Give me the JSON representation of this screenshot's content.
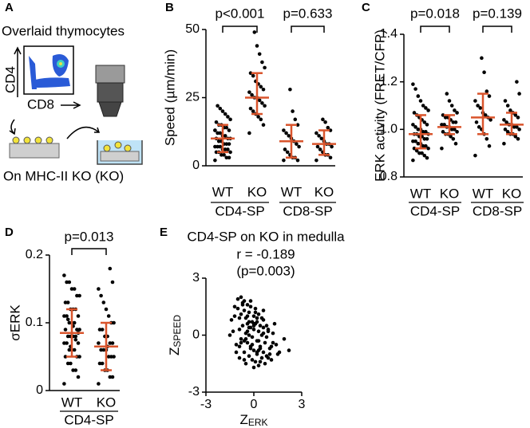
{
  "diagram": {
    "panel": "A",
    "caption_top": "Overlaid thymocytes",
    "axis_y": "CD4",
    "axis_x": "CD8",
    "caption_bottom": "On MHC-II KO (KO)"
  },
  "chart_data": [
    {
      "type": "strip",
      "panel": "B",
      "ylabel": "Speed (µm/min)",
      "categories": [
        "WT",
        "KO",
        "WT",
        "KO"
      ],
      "groups": [
        "CD4-SP",
        "CD8-SP"
      ],
      "annotations": [
        "p<0.001",
        "p=0.633"
      ],
      "ylim": [
        0,
        50
      ],
      "yticks": [
        0,
        25,
        50
      ],
      "color": "#000000",
      "summary_color": "#d9542c",
      "values": [
        [
          2,
          3,
          3,
          4,
          4,
          5,
          5,
          5,
          6,
          6,
          6,
          7,
          7,
          7,
          8,
          8,
          8,
          9,
          9,
          10,
          10,
          10,
          11,
          11,
          12,
          12,
          13,
          13,
          14,
          14,
          15,
          15,
          16,
          17,
          18,
          19,
          20,
          21,
          22,
          13
        ],
        [
          12,
          15,
          17,
          18,
          19,
          20,
          21,
          22,
          23,
          24,
          25,
          25,
          26,
          27,
          28,
          29,
          30,
          31,
          33,
          34,
          36,
          38,
          41,
          44,
          49
        ],
        [
          2,
          2,
          3,
          3,
          4,
          5,
          6,
          7,
          8,
          9,
          10,
          11,
          12,
          13,
          15,
          17,
          20,
          28
        ],
        [
          2,
          3,
          4,
          4,
          5,
          6,
          7,
          7,
          8,
          8,
          9,
          10,
          11,
          12,
          13,
          14,
          16,
          17
        ]
      ],
      "median": [
        10,
        25,
        9,
        8
      ],
      "q1": [
        5,
        19,
        3,
        4
      ],
      "q3": [
        15,
        34,
        15,
        13
      ]
    },
    {
      "type": "strip",
      "panel": "C",
      "ylabel": "ERK activity (FRET/CFP)",
      "categories": [
        "WT",
        "KO",
        "WT",
        "KO"
      ],
      "groups": [
        "CD4-SP",
        "CD8-SP"
      ],
      "annotations": [
        "p=0.018",
        "p=0.139"
      ],
      "ylim": [
        0.8,
        1.4
      ],
      "yticks": [
        0.8,
        {
          "value": 1,
          "label": "1.0"
        },
        1.2,
        1.4
      ],
      "color": "#000000",
      "summary_color": "#d9542c",
      "values": [
        [
          0.87,
          0.88,
          0.89,
          0.9,
          0.9,
          0.91,
          0.92,
          0.92,
          0.93,
          0.93,
          0.94,
          0.94,
          0.95,
          0.95,
          0.96,
          0.96,
          0.97,
          0.97,
          0.98,
          0.98,
          0.98,
          0.99,
          0.99,
          1.0,
          1.0,
          1.01,
          1.02,
          1.02,
          1.03,
          1.04,
          1.05,
          1.06,
          1.07,
          1.08,
          1.09,
          1.1,
          1.12,
          1.14,
          1.17,
          1.19
        ],
        [
          0.92,
          0.94,
          0.96,
          0.97,
          0.98,
          0.98,
          0.99,
          0.99,
          1.0,
          1.0,
          1.01,
          1.01,
          1.02,
          1.02,
          1.03,
          1.03,
          1.04,
          1.05,
          1.05,
          1.06,
          1.07,
          1.08,
          1.1,
          1.12,
          1.15
        ],
        [
          0.89,
          0.93,
          0.96,
          0.98,
          1.0,
          1.01,
          1.03,
          1.04,
          1.05,
          1.06,
          1.07,
          1.09,
          1.1,
          1.12,
          1.14,
          1.16,
          1.24,
          1.3
        ],
        [
          0.94,
          0.96,
          0.97,
          0.98,
          0.98,
          0.99,
          1.0,
          1.0,
          1.01,
          1.01,
          1.02,
          1.02,
          1.03,
          1.04,
          1.05,
          1.06,
          1.07,
          1.08,
          1.1,
          1.12,
          1.15,
          1.2
        ]
      ],
      "median": [
        0.98,
        1.01,
        1.05,
        1.02
      ],
      "q1": [
        0.92,
        0.98,
        0.98,
        0.98
      ],
      "q3": [
        1.06,
        1.06,
        1.15,
        1.07
      ]
    },
    {
      "type": "strip",
      "panel": "D",
      "ylabel": "σERK",
      "categories": [
        "WT",
        "KO"
      ],
      "groups": [
        "CD4-SP"
      ],
      "annotations": [
        "p=0.013"
      ],
      "ylim": [
        0,
        0.2
      ],
      "yticks": [
        0,
        0.1,
        0.2
      ],
      "color": "#000000",
      "summary_color": "#d9542c",
      "values": [
        [
          0.01,
          0.02,
          0.03,
          0.03,
          0.04,
          0.04,
          0.05,
          0.05,
          0.05,
          0.06,
          0.06,
          0.06,
          0.07,
          0.07,
          0.07,
          0.08,
          0.08,
          0.08,
          0.08,
          0.09,
          0.09,
          0.09,
          0.1,
          0.1,
          0.1,
          0.11,
          0.11,
          0.11,
          0.12,
          0.12,
          0.12,
          0.13,
          0.13,
          0.14,
          0.14,
          0.15,
          0.15,
          0.16,
          0.16,
          0.17,
          0.085,
          0.075,
          0.095,
          0.065,
          0.105
        ],
        [
          0.01,
          0.02,
          0.02,
          0.03,
          0.03,
          0.04,
          0.04,
          0.05,
          0.05,
          0.05,
          0.06,
          0.06,
          0.06,
          0.07,
          0.07,
          0.07,
          0.08,
          0.08,
          0.09,
          0.09,
          0.1,
          0.1,
          0.11,
          0.12,
          0.13,
          0.14,
          0.15,
          0.16,
          0.18,
          0.065
        ]
      ],
      "median": [
        0.085,
        0.065
      ],
      "q1": [
        0.05,
        0.03
      ],
      "q3": [
        0.12,
        0.1
      ]
    },
    {
      "type": "scatter",
      "panel": "E",
      "title": "CD4-SP on KO in medulla",
      "annotations": [
        "r = -0.189",
        "(p=0.003)"
      ],
      "xlabel": {
        "main": "Z",
        "sub": "ERK"
      },
      "ylabel": {
        "main": "Z",
        "sub": "SPEED"
      },
      "xlim": [
        -3,
        3
      ],
      "xticks": [
        -3,
        0,
        3
      ],
      "ylim": [
        -3,
        3
      ],
      "yticks": [
        -3,
        0,
        3
      ],
      "color": "#000000",
      "x": [
        -1.4,
        -1.2,
        -1.1,
        -1.0,
        -0.9,
        -0.9,
        -0.8,
        -0.8,
        -0.7,
        -0.7,
        -0.6,
        -0.6,
        -0.5,
        -0.5,
        -0.5,
        -0.4,
        -0.4,
        -0.4,
        -0.3,
        -0.3,
        -0.3,
        -0.2,
        -0.2,
        -0.2,
        -0.1,
        -0.1,
        -0.1,
        0.0,
        0.0,
        0.0,
        0.1,
        0.1,
        0.1,
        0.2,
        0.2,
        0.2,
        0.3,
        0.3,
        0.3,
        0.4,
        0.4,
        0.5,
        0.5,
        0.6,
        0.6,
        0.7,
        0.8,
        0.9,
        1.0,
        1.1,
        1.2,
        1.4,
        1.6,
        1.9,
        2.2,
        -1.3,
        -1.0,
        -0.8,
        -0.6,
        -0.4,
        -0.2,
        0.0,
        0.2,
        0.4,
        0.6,
        0.8,
        1.0,
        1.3,
        -1.1,
        -0.9,
        -0.7,
        -0.5,
        -0.3,
        -0.1,
        0.1,
        0.3,
        0.5,
        0.7,
        0.9,
        1.2,
        -1.5,
        -1.2,
        -0.9,
        -0.6,
        -0.3,
        0.0,
        0.3,
        0.6,
        0.9,
        1.5,
        -0.8,
        -0.4,
        0.0,
        0.4,
        0.8,
        -0.6,
        -0.2,
        0.2,
        0.6,
        1.1
      ],
      "y": [
        0.8,
        1.5,
        -0.5,
        1.9,
        0.3,
        -1.2,
        1.1,
        -0.2,
        1.7,
        0.5,
        -0.9,
        1.3,
        0.1,
        -1.5,
        0.9,
        1.6,
        -0.4,
        0.6,
        -1.1,
        1.2,
        0.0,
        1.8,
        -0.7,
        0.4,
        -1.3,
        0.7,
        -0.1,
        1.0,
        -0.8,
        0.3,
        -1.4,
        0.6,
        1.4,
        -0.3,
        -1.0,
        0.9,
        0.2,
        -1.6,
        1.1,
        -0.6,
        0.5,
        -1.2,
        0.0,
        -0.9,
        0.8,
        -0.4,
        -1.1,
        0.3,
        -0.7,
        -1.3,
        0.1,
        -0.5,
        -0.9,
        -0.2,
        -0.8,
        0.2,
        1.4,
        2.0,
        -0.3,
        1.0,
        -0.6,
        0.5,
        0.7,
        -1.4,
        0.4,
        -0.1,
        -1.0,
        0.6,
        -0.9,
        0.9,
        1.6,
        -0.2,
        0.4,
        -0.5,
        1.2,
        -0.8,
        0.9,
        -1.5,
        0.2,
        -0.4,
        0.0,
        1.0,
        -0.6,
        1.8,
        0.7,
        -1.7,
        -0.3,
        1.3,
        -1.2,
        -1.0,
        -0.4,
        0.2,
        0.6,
        -0.7,
        0.5,
        -1.3,
        1.5,
        -0.9,
        0.1,
        -0.6
      ]
    }
  ]
}
